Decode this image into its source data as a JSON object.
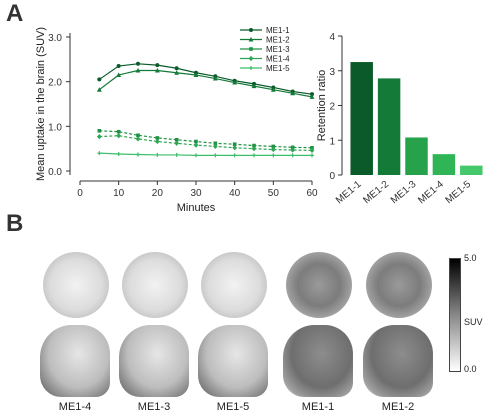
{
  "panels": {
    "a_label": "A",
    "b_label": "B"
  },
  "chart_data": [
    {
      "type": "line",
      "xlabel": "Minutes",
      "ylabel": "Mean uptake in the brain (SUV)",
      "xlim": [
        0,
        60
      ],
      "ylim": [
        0,
        3.0
      ],
      "xticks": [
        "0",
        "10",
        "20",
        "30",
        "40",
        "50",
        "60"
      ],
      "yticks": [
        "0.0",
        "1.0",
        "2.0",
        "3.0"
      ],
      "legend_position": "top-right",
      "x": [
        5,
        10,
        15,
        20,
        25,
        30,
        35,
        40,
        45,
        50,
        55,
        60
      ],
      "series": [
        {
          "name": "ME1-1",
          "color": "#0b5a2a",
          "values": [
            2.05,
            2.35,
            2.4,
            2.37,
            2.3,
            2.2,
            2.12,
            2.02,
            1.95,
            1.87,
            1.78,
            1.72
          ]
        },
        {
          "name": "ME1-2",
          "color": "#137a38",
          "values": [
            1.82,
            2.15,
            2.25,
            2.25,
            2.2,
            2.15,
            2.07,
            1.98,
            1.9,
            1.82,
            1.74,
            1.66
          ]
        },
        {
          "name": "ME1-3",
          "color": "#1f9244",
          "values": [
            0.9,
            0.88,
            0.8,
            0.74,
            0.7,
            0.66,
            0.62,
            0.6,
            0.57,
            0.55,
            0.53,
            0.52
          ]
        },
        {
          "name": "ME1-4",
          "color": "#2ea653",
          "values": [
            0.77,
            0.79,
            0.72,
            0.66,
            0.62,
            0.58,
            0.55,
            0.52,
            0.5,
            0.48,
            0.47,
            0.46
          ]
        },
        {
          "name": "ME1-5",
          "color": "#3bbf6a",
          "values": [
            0.4,
            0.38,
            0.37,
            0.36,
            0.36,
            0.35,
            0.35,
            0.35,
            0.35,
            0.35,
            0.35,
            0.35
          ]
        }
      ]
    },
    {
      "type": "bar",
      "ylabel": "Retention ratio",
      "ylim": [
        0,
        4
      ],
      "yticks": [
        "0",
        "1",
        "2",
        "3",
        "4"
      ],
      "categories": [
        "ME1-1",
        "ME1-2",
        "ME1-3",
        "ME1-4",
        "ME1-5"
      ],
      "values": [
        3.25,
        2.78,
        1.08,
        0.6,
        0.27
      ],
      "colors": [
        "#0b5a2a",
        "#137a38",
        "#25a24a",
        "#2fb556",
        "#45c76b"
      ]
    }
  ],
  "panel_b": {
    "image_labels": [
      "ME1-4",
      "ME1-3",
      "ME1-5",
      "ME1-1",
      "ME1-2"
    ],
    "colorbar": {
      "max_label": "5.0",
      "mid_label": "SUV",
      "min_label": "0.0"
    }
  }
}
